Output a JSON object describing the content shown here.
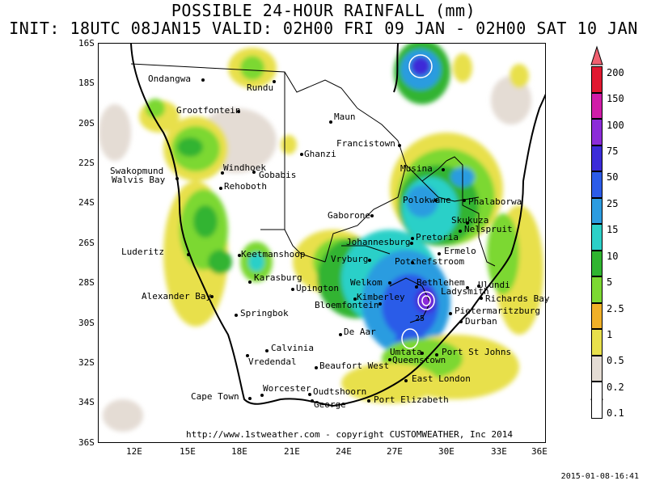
{
  "title_line1": "POSSIBLE 24-HOUR  RAINFALL (mm)",
  "title_line2": "INIT: 18UTC 08JAN15  VALID: 02H00 FRI 09 JAN  -  02H00 SAT 10 JAN",
  "lat_labels": [
    "16S",
    "18S",
    "20S",
    "22S",
    "24S",
    "26S",
    "28S",
    "30S",
    "32S",
    "34S",
    "36S"
  ],
  "lon_labels": [
    "12E",
    "15E",
    "18E",
    "21E",
    "24E",
    "27E",
    "30E",
    "33E",
    "36E"
  ],
  "cities": [
    {
      "name": "Ondangwa"
    },
    {
      "name": "Rundu"
    },
    {
      "name": "Grootfontein"
    },
    {
      "name": "Maun"
    },
    {
      "name": "Francistown"
    },
    {
      "name": "Ghanzi"
    },
    {
      "name": "Swakopmund"
    },
    {
      "name": "Walvis Bay"
    },
    {
      "name": "Windhoek"
    },
    {
      "name": "Gobabis"
    },
    {
      "name": "Rehoboth"
    },
    {
      "name": "Musina"
    },
    {
      "name": "Polokwane"
    },
    {
      "name": "Phalaborwa"
    },
    {
      "name": "Gaborone"
    },
    {
      "name": "Skukuza"
    },
    {
      "name": "Nelspruit"
    },
    {
      "name": "Pretoria"
    },
    {
      "name": "Johannesburg"
    },
    {
      "name": "Ermelo"
    },
    {
      "name": "Luderitz"
    },
    {
      "name": "Keetmanshoop"
    },
    {
      "name": "Vryburg"
    },
    {
      "name": "Potchefstroom"
    },
    {
      "name": "Karasburg"
    },
    {
      "name": "Upington"
    },
    {
      "name": "Welkom"
    },
    {
      "name": "Bethlehem"
    },
    {
      "name": "Ladysmith"
    },
    {
      "name": "Ulundi"
    },
    {
      "name": "Richards Bay"
    },
    {
      "name": "Kimberley"
    },
    {
      "name": "Alexander Bay"
    },
    {
      "name": "Bloemfontein"
    },
    {
      "name": "Pietermaritzburg"
    },
    {
      "name": "Springbok"
    },
    {
      "name": "Durban"
    },
    {
      "name": "De Aar"
    },
    {
      "name": "Calvinia"
    },
    {
      "name": "Umtata"
    },
    {
      "name": "Port St Johns"
    },
    {
      "name": "Vredendal"
    },
    {
      "name": "Queenstown"
    },
    {
      "name": "Beaufort West"
    },
    {
      "name": "East London"
    },
    {
      "name": "Worcester"
    },
    {
      "name": "Oudtshoorn"
    },
    {
      "name": "Cape Town"
    },
    {
      "name": "George"
    },
    {
      "name": "Port Elizabeth"
    }
  ],
  "contour_label": "25",
  "legend": {
    "levels": [
      "0.1",
      "0.2",
      "0.5",
      "1",
      "2.5",
      "5",
      "10",
      "15",
      "25",
      "50",
      "75",
      "100",
      "150",
      "200"
    ],
    "colors": [
      "#ffffff",
      "#e4dcd4",
      "#e8e04c",
      "#f0b028",
      "#7cd832",
      "#30b430",
      "#2cd0c8",
      "#2c9ce0",
      "#2c5ce8",
      "#3c2cd8",
      "#8c2cd8",
      "#d01ca8",
      "#e01830",
      "#f06070"
    ]
  },
  "credit": "http://www.1stweather.com - copyright CUSTOMWEATHER, Inc 2014",
  "timestamp": "2015-01-08-16:41"
}
